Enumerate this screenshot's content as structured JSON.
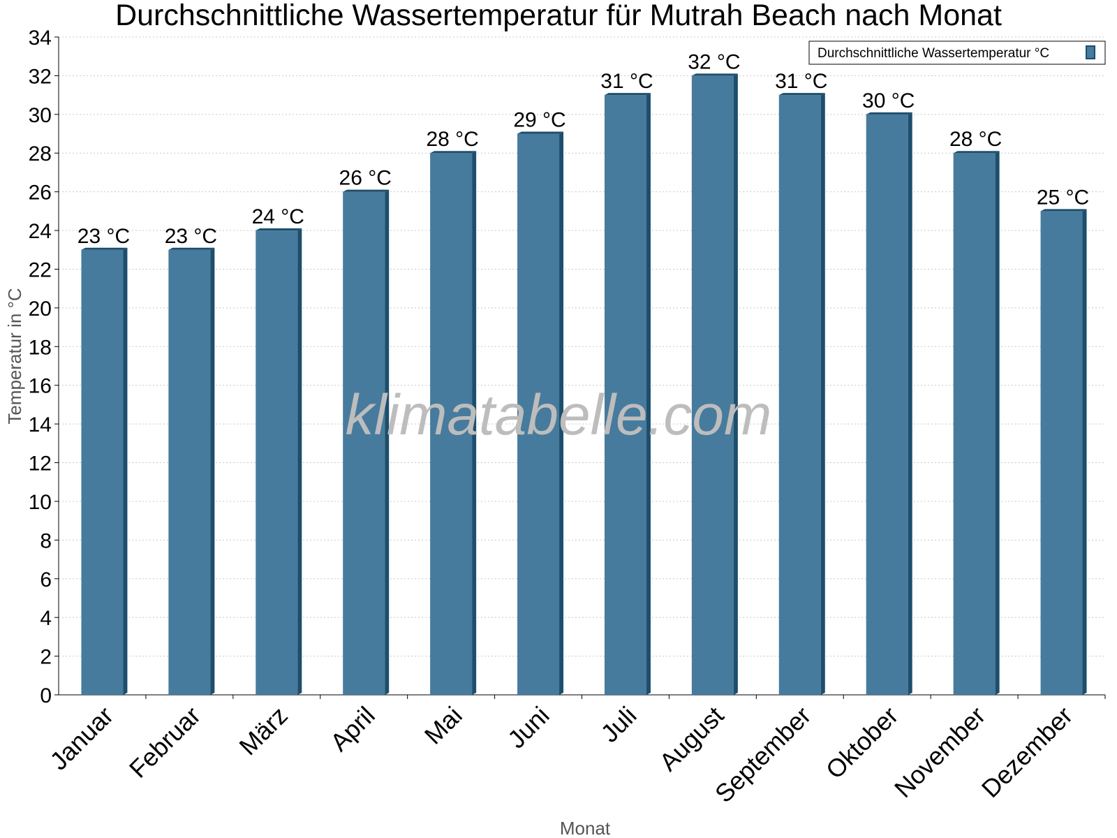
{
  "chart_data": {
    "type": "bar",
    "title": "Durchschnittliche Wassertemperatur für Mutrah Beach nach Monat",
    "xlabel": "Monat",
    "ylabel": "Temperatur in °C",
    "categories": [
      "Januar",
      "Februar",
      "März",
      "April",
      "Mai",
      "Juni",
      "Juli",
      "August",
      "September",
      "Oktober",
      "November",
      "Dezember"
    ],
    "series": [
      {
        "name": "Durchschnittliche Wassertemperatur °C",
        "values": [
          23,
          23,
          24,
          26,
          28,
          29,
          31,
          32,
          31,
          30,
          28,
          25
        ],
        "color": "#467b9d",
        "side_color": "#1d4e6c"
      }
    ],
    "value_labels": [
      "23 °C",
      "23 °C",
      "24 °C",
      "26 °C",
      "28 °C",
      "29 °C",
      "31 °C",
      "32 °C",
      "31 °C",
      "30 °C",
      "28 °C",
      "25 °C"
    ],
    "yticks": [
      0,
      2,
      4,
      6,
      8,
      10,
      12,
      14,
      16,
      18,
      20,
      22,
      24,
      26,
      28,
      30,
      32,
      34
    ],
    "ylim": [
      0,
      34
    ],
    "grid": true,
    "legend_position": "top-right",
    "watermark": "klimatabelle.com"
  }
}
